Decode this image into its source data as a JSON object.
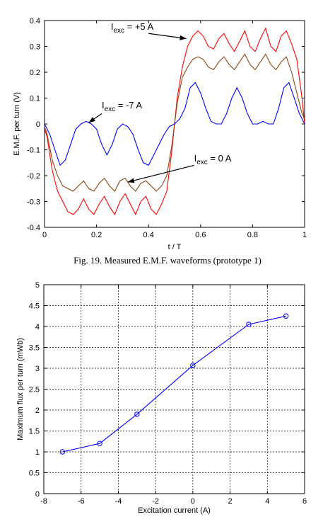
{
  "caption": "Fig. 19. Measured E.M.F. waveforms (prototype 1)",
  "chart_data": [
    {
      "type": "line",
      "xlabel": "t / T",
      "ylabel": "E.M.F. per turn (V)",
      "xlim": [
        0,
        1
      ],
      "ylim": [
        -0.4,
        0.4
      ],
      "xticks": [
        "0",
        "0.2",
        "0.4",
        "0.6",
        "0.8",
        "1"
      ],
      "yticks": [
        "-0.4",
        "-0.3",
        "-0.2",
        "-0.1",
        "0",
        "0.1",
        "0.2",
        "0.3",
        "0.4"
      ],
      "grid": false,
      "series": [
        {
          "name": "I_exc = +5 A",
          "label_main": "I",
          "label_sub": "exc",
          "label_rest": " = +5 A",
          "color": "#ff0000",
          "x": [
            0,
            0.01,
            0.02,
            0.03,
            0.05,
            0.07,
            0.09,
            0.11,
            0.13,
            0.15,
            0.17,
            0.19,
            0.21,
            0.23,
            0.25,
            0.27,
            0.29,
            0.31,
            0.33,
            0.35,
            0.37,
            0.39,
            0.41,
            0.43,
            0.45,
            0.47,
            0.49,
            0.51,
            0.53,
            0.55,
            0.57,
            0.59,
            0.61,
            0.63,
            0.65,
            0.67,
            0.69,
            0.71,
            0.73,
            0.75,
            0.77,
            0.79,
            0.81,
            0.83,
            0.85,
            0.87,
            0.89,
            0.91,
            0.93,
            0.95,
            0.97,
            0.99,
            1.0
          ],
          "y": [
            -0.02,
            -0.05,
            -0.12,
            -0.18,
            -0.26,
            -0.3,
            -0.34,
            -0.35,
            -0.33,
            -0.29,
            -0.33,
            -0.35,
            -0.31,
            -0.28,
            -0.32,
            -0.35,
            -0.3,
            -0.27,
            -0.31,
            -0.35,
            -0.3,
            -0.28,
            -0.33,
            -0.35,
            -0.31,
            -0.26,
            -0.1,
            0.1,
            0.22,
            0.3,
            0.34,
            0.36,
            0.34,
            0.3,
            0.29,
            0.33,
            0.35,
            0.31,
            0.28,
            0.32,
            0.36,
            0.3,
            0.28,
            0.33,
            0.37,
            0.3,
            0.28,
            0.34,
            0.36,
            0.31,
            0.25,
            0.1,
            0.0
          ]
        },
        {
          "name": "I_exc = 0 A",
          "label_main": "I",
          "label_sub": "exc",
          "label_rest": " = 0 A",
          "color": "#8b4513",
          "x": [
            0,
            0.01,
            0.03,
            0.05,
            0.07,
            0.09,
            0.11,
            0.13,
            0.15,
            0.17,
            0.19,
            0.21,
            0.23,
            0.25,
            0.27,
            0.29,
            0.31,
            0.33,
            0.35,
            0.37,
            0.39,
            0.41,
            0.43,
            0.45,
            0.47,
            0.49,
            0.51,
            0.53,
            0.55,
            0.57,
            0.59,
            0.61,
            0.63,
            0.65,
            0.67,
            0.69,
            0.71,
            0.73,
            0.75,
            0.77,
            0.79,
            0.81,
            0.83,
            0.85,
            0.87,
            0.89,
            0.91,
            0.93,
            0.95,
            0.97,
            0.99,
            1.0
          ],
          "y": [
            -0.01,
            -0.04,
            -0.14,
            -0.2,
            -0.24,
            -0.25,
            -0.26,
            -0.24,
            -0.22,
            -0.25,
            -0.26,
            -0.23,
            -0.21,
            -0.24,
            -0.26,
            -0.22,
            -0.21,
            -0.24,
            -0.26,
            -0.23,
            -0.22,
            -0.24,
            -0.26,
            -0.24,
            -0.2,
            -0.08,
            0.08,
            0.18,
            0.22,
            0.25,
            0.26,
            0.25,
            0.22,
            0.21,
            0.24,
            0.26,
            0.23,
            0.21,
            0.24,
            0.27,
            0.23,
            0.21,
            0.24,
            0.27,
            0.23,
            0.21,
            0.24,
            0.26,
            0.2,
            0.12,
            0.04,
            0.02
          ]
        },
        {
          "name": "I_exc = -7 A",
          "label_main": "I",
          "label_sub": "exc",
          "label_rest": " = -7 A",
          "color": "#0000ff",
          "x": [
            0,
            0.02,
            0.04,
            0.06,
            0.08,
            0.1,
            0.12,
            0.14,
            0.16,
            0.18,
            0.2,
            0.22,
            0.24,
            0.26,
            0.28,
            0.3,
            0.32,
            0.34,
            0.36,
            0.38,
            0.4,
            0.42,
            0.44,
            0.46,
            0.48,
            0.5,
            0.52,
            0.54,
            0.56,
            0.58,
            0.6,
            0.62,
            0.64,
            0.66,
            0.68,
            0.7,
            0.72,
            0.74,
            0.76,
            0.78,
            0.8,
            0.82,
            0.84,
            0.86,
            0.88,
            0.9,
            0.92,
            0.94,
            0.96,
            0.98,
            1.0
          ],
          "y": [
            0.0,
            -0.04,
            -0.1,
            -0.16,
            -0.14,
            -0.08,
            -0.02,
            0.0,
            0.01,
            0.0,
            -0.02,
            -0.08,
            -0.12,
            -0.08,
            -0.02,
            0.0,
            -0.01,
            -0.04,
            -0.1,
            -0.15,
            -0.16,
            -0.12,
            -0.08,
            -0.04,
            -0.01,
            0.0,
            0.02,
            0.06,
            0.14,
            0.16,
            0.12,
            0.06,
            0.01,
            0.0,
            0.0,
            0.04,
            0.1,
            0.14,
            0.1,
            0.04,
            0.0,
            0.0,
            0.01,
            0.0,
            0.0,
            0.06,
            0.14,
            0.16,
            0.1,
            0.04,
            0.0
          ]
        }
      ]
    },
    {
      "type": "line",
      "xlabel": "Excitation current (A)",
      "ylabel": "Maximum flux per turn (mWb)",
      "xlim": [
        -8,
        6
      ],
      "ylim": [
        0,
        5
      ],
      "xticks": [
        "-8",
        "-6",
        "-4",
        "-2",
        "0",
        "2",
        "4",
        "6"
      ],
      "yticks": [
        "0",
        "0.5",
        "1",
        "1.5",
        "2",
        "2.5",
        "3",
        "3.5",
        "4",
        "4.5",
        "5"
      ],
      "grid": true,
      "series": [
        {
          "color": "#0000ff",
          "marker": "circle",
          "x": [
            -7,
            -5,
            -3,
            0,
            3,
            5
          ],
          "y": [
            1.0,
            1.2,
            1.9,
            3.07,
            4.05,
            4.25
          ]
        }
      ]
    }
  ]
}
